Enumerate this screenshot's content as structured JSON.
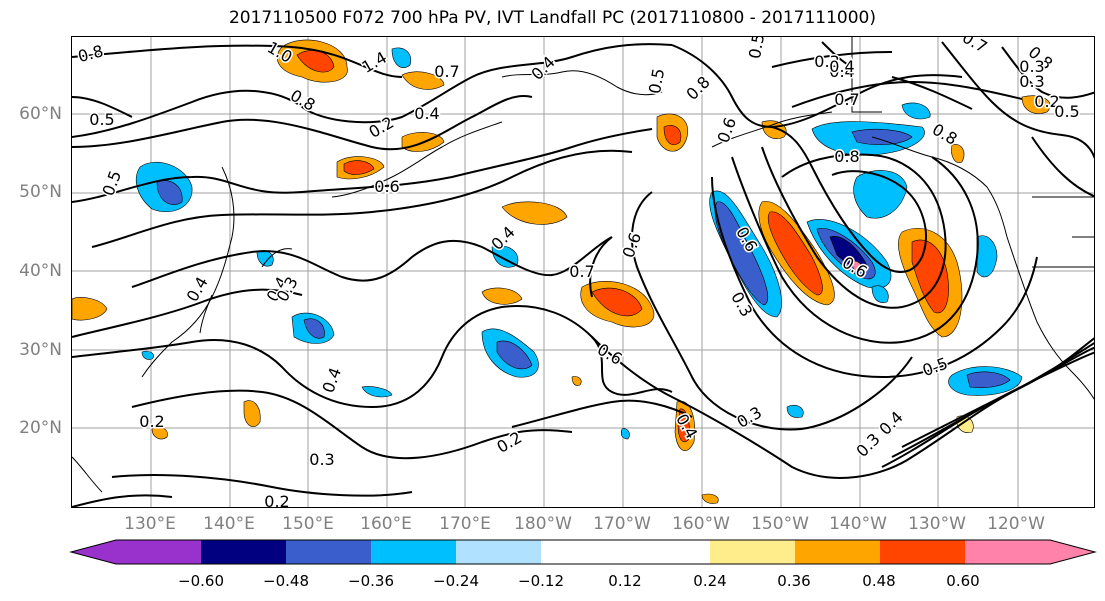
{
  "title": "2017110500 F072 700 hPa PV, IVT Landfall PC (2017110800 - 2017111000)",
  "lat_labels": [
    "60°N",
    "50°N",
    "40°N",
    "30°N",
    "20°N"
  ],
  "lon_labels": [
    "130°E",
    "140°E",
    "150°E",
    "160°E",
    "170°E",
    "180°W",
    "170°W",
    "160°W",
    "150°W",
    "140°W",
    "130°W",
    "120°W"
  ],
  "colorbar": {
    "colors": [
      "#9932cc",
      "#000080",
      "#3a5fcd",
      "#00bfff",
      "#b0e2ff",
      "#ffffff",
      "#ffffff",
      "#ffec8b",
      "#ffa500",
      "#ff4500",
      "#b22222",
      "#ff82ab"
    ],
    "ticks": [
      "−0.60",
      "−0.48",
      "−0.36",
      "−0.24",
      "−0.12",
      "0.12",
      "0.24",
      "0.36",
      "0.48",
      "0.60"
    ]
  },
  "contour_labels": [
    "0.8",
    "1.0",
    "1.4",
    "0.7",
    "0.4",
    "0.5",
    "0.8",
    "0.5",
    "0.3",
    "0.4",
    "0.8",
    "0.5",
    "0.8",
    "0.2",
    "0.4",
    "0.6",
    "0.7",
    "0.7",
    "0.8",
    "0.8",
    "0.6",
    "0.5",
    "0.4",
    "0.4",
    "0.4",
    "0.6",
    "0.3",
    "0.7",
    "0.6",
    "0.6",
    "0.3",
    "0.6",
    "0.4",
    "0.3",
    "0.4",
    "0.2",
    "0.2",
    "0.3",
    "0.2",
    "0.3",
    "0.4",
    "0.5",
    "0.3",
    "0.3",
    "0.4",
    "0.2",
    "0.5"
  ]
}
